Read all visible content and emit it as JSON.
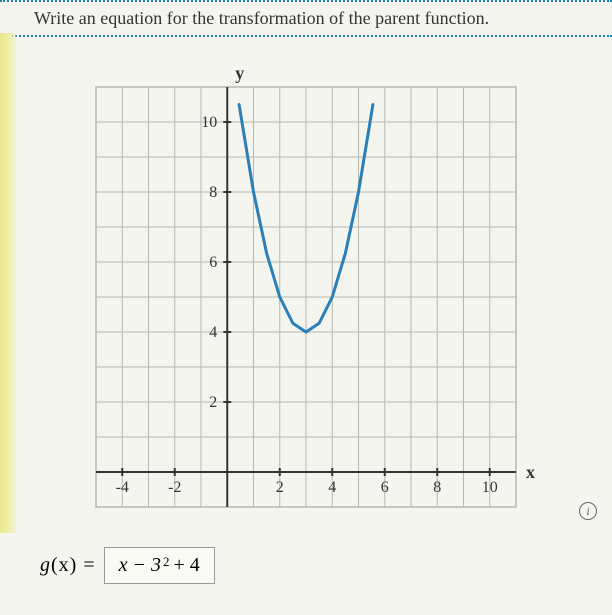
{
  "question": {
    "text": "Write an equation for the transformation of the parent function."
  },
  "chart": {
    "type": "line",
    "x_label": "x",
    "y_label": "y",
    "xlim": [
      -5,
      11
    ],
    "ylim": [
      -1,
      11
    ],
    "xticks": [
      -4,
      -2,
      2,
      4,
      6,
      8,
      10
    ],
    "yticks": [
      2,
      4,
      6,
      8,
      10
    ],
    "grid_color": "#b8b8b0",
    "axis_color": "#333333",
    "background_color": "#f5f5f0",
    "curve": {
      "color": "#2b7fb8",
      "width": 3,
      "vertex": [
        3,
        4
      ],
      "points_x": [
        0.45,
        1,
        1.5,
        2,
        2.5,
        3,
        3.5,
        4,
        4.5,
        5,
        5.55
      ],
      "points_y": [
        10.5,
        8,
        6.25,
        5,
        4.25,
        4,
        4.25,
        5,
        6.25,
        8,
        10.5
      ]
    },
    "tick_fontsize": 16,
    "label_fontsize": 18
  },
  "answer": {
    "lhs_g": "g",
    "lhs_x": "(x)",
    "equals": " = ",
    "term1": "x − 3",
    "exponent": "2",
    "term2": "+ 4"
  }
}
